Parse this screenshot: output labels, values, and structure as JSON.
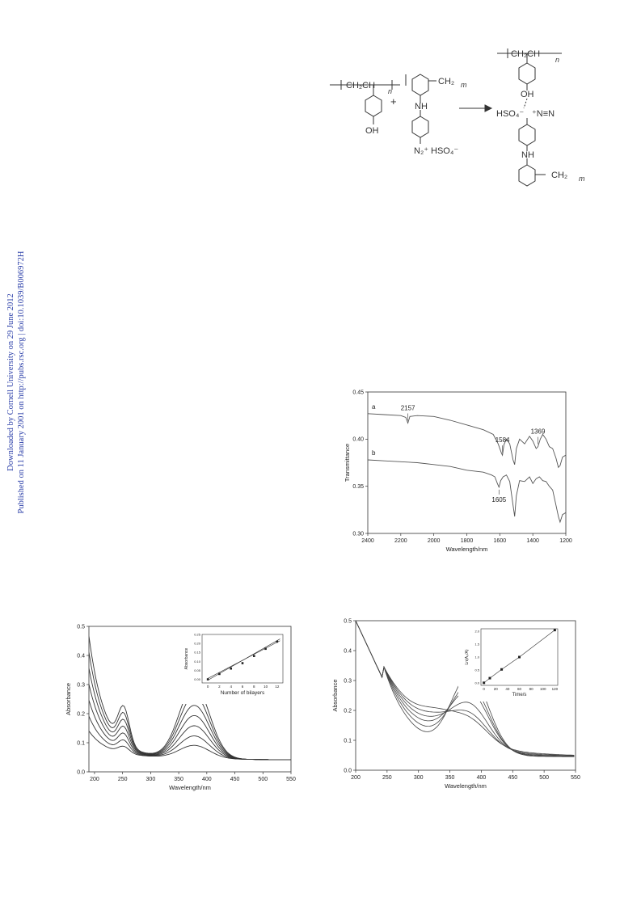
{
  "sidebar": {
    "line1": "Downloaded by Cornell University on 29 June 2012",
    "line2": "Published on 11 January 2001 on http://pubs.rsc.org | doi:10.1039/B006972H"
  },
  "scheme": {
    "label_ch2ch": "CH₂CH",
    "label_n": "n",
    "label_oh": "OH",
    "label_plus": "+",
    "label_ch2": "CH₂",
    "label_m": "m",
    "label_nh": "NH",
    "label_n2": "N₂⁺",
    "label_hso4": "HSO₄⁻",
    "label_hso4_left": "HSO₄⁻",
    "label_nn": "⁺N≡N",
    "label_arrow": "→"
  },
  "ir_chart": {
    "chart_data": {
      "type": "line",
      "xlabel": "Wavelength/nm",
      "ylabel": "Transmittance",
      "xlim": [
        2400,
        1200
      ],
      "ylim": [
        0.3,
        0.45
      ],
      "xticks": [
        "2400",
        "2200",
        "2000",
        "1800",
        "1600",
        "1400",
        "1200"
      ],
      "yticks": [
        "0.30",
        "0.35",
        "0.40",
        "0.45"
      ],
      "series": [
        {
          "name": "a",
          "x": [
            2400,
            2300,
            2200,
            2170,
            2157,
            2145,
            2100,
            2000,
            1900,
            1800,
            1700,
            1640,
            1610,
            1590,
            1584,
            1575,
            1560,
            1540,
            1520,
            1510,
            1500,
            1480,
            1450,
            1420,
            1400,
            1380,
            1369,
            1355,
            1340,
            1320,
            1300,
            1280,
            1260,
            1245,
            1235,
            1220,
            1200
          ],
          "y": [
            0.427,
            0.426,
            0.425,
            0.423,
            0.417,
            0.424,
            0.425,
            0.424,
            0.42,
            0.415,
            0.41,
            0.405,
            0.395,
            0.385,
            0.383,
            0.394,
            0.4,
            0.395,
            0.378,
            0.373,
            0.39,
            0.4,
            0.395,
            0.403,
            0.398,
            0.39,
            0.392,
            0.4,
            0.405,
            0.4,
            0.392,
            0.39,
            0.38,
            0.37,
            0.372,
            0.381,
            0.383
          ]
        },
        {
          "name": "b",
          "x": [
            2400,
            2300,
            2200,
            2100,
            2000,
            1900,
            1800,
            1700,
            1650,
            1630,
            1615,
            1605,
            1595,
            1580,
            1560,
            1540,
            1520,
            1510,
            1500,
            1480,
            1450,
            1420,
            1400,
            1380,
            1360,
            1340,
            1320,
            1300,
            1280,
            1260,
            1245,
            1235,
            1220,
            1200
          ],
          "y": [
            0.378,
            0.377,
            0.376,
            0.375,
            0.373,
            0.371,
            0.367,
            0.365,
            0.362,
            0.36,
            0.353,
            0.349,
            0.356,
            0.36,
            0.362,
            0.355,
            0.33,
            0.318,
            0.34,
            0.356,
            0.355,
            0.36,
            0.353,
            0.358,
            0.36,
            0.356,
            0.355,
            0.35,
            0.346,
            0.33,
            0.318,
            0.312,
            0.32,
            0.322
          ]
        }
      ],
      "annotations": [
        {
          "text": "2157",
          "x": 2157,
          "y": 0.417
        },
        {
          "text": "1584",
          "x": 1584,
          "y": 0.383
        },
        {
          "text": "1369",
          "x": 1369,
          "y": 0.392
        },
        {
          "text": "1605",
          "x": 1605,
          "y": 0.349
        }
      ]
    }
  },
  "uv_left": {
    "chart_data": {
      "type": "line",
      "xlabel": "Wavelength/nm",
      "ylabel": "Absorbance",
      "xlim": [
        190,
        550
      ],
      "ylim": [
        0.0,
        0.5
      ],
      "xticks": [
        "200",
        "250",
        "300",
        "350",
        "400",
        "450",
        "500",
        "550"
      ],
      "yticks": [
        "0.0",
        "0.1",
        "0.2",
        "0.3",
        "0.4",
        "0.5"
      ],
      "series_scales": [
        0.32,
        0.55,
        0.8,
        1.05,
        1.3,
        1.55,
        1.8
      ],
      "inset": {
        "type": "scatter",
        "xlabel": "Number of bilayers",
        "ylabel": "Absorbance",
        "xlim": [
          -1,
          13
        ],
        "ylim": [
          -0.02,
          0.25
        ],
        "xticks": [
          "0",
          "2",
          "4",
          "6",
          "8",
          "10",
          "12"
        ],
        "yticks": [
          "0.00",
          "0.05",
          "0.10",
          "0.15",
          "0.20",
          "0.25"
        ],
        "x": [
          0,
          2,
          4,
          6,
          8,
          10,
          12
        ],
        "y": [
          0.0,
          0.03,
          0.06,
          0.09,
          0.13,
          0.17,
          0.21
        ]
      }
    }
  },
  "uv_right": {
    "chart_data": {
      "type": "line",
      "xlabel": "Wavelength/nm",
      "ylabel": "Absorbance",
      "xlim": [
        200,
        550
      ],
      "ylim": [
        0.0,
        0.5
      ],
      "xticks": [
        "200",
        "250",
        "300",
        "350",
        "400",
        "450",
        "500",
        "550"
      ],
      "yticks": [
        "0.0",
        "0.1",
        "0.2",
        "0.3",
        "0.4",
        "0.5"
      ],
      "peak_heights": [
        0.26,
        0.22,
        0.19,
        0.14,
        0.1,
        0.075
      ],
      "inset": {
        "type": "scatter",
        "xlabel": "Time/s",
        "ylabel": "Ln(A₀/A)",
        "xlim": [
          -5,
          125
        ],
        "ylim": [
          -0.1,
          2.1
        ],
        "xticks": [
          "0",
          "20",
          "40",
          "60",
          "80",
          "100",
          "120"
        ],
        "yticks": [
          "0.0",
          "0.5",
          "1.0",
          "1.5",
          "2.0"
        ],
        "x": [
          0,
          10,
          30,
          60,
          120
        ],
        "y": [
          0.0,
          0.18,
          0.52,
          1.0,
          2.05
        ]
      }
    }
  }
}
